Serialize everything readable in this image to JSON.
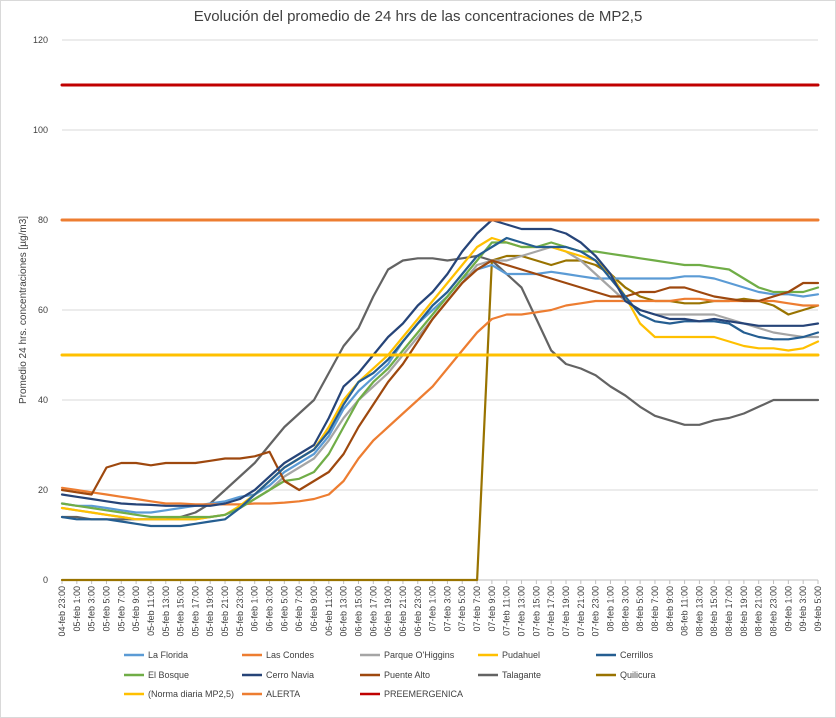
{
  "chart_data": {
    "type": "line",
    "title": "Evolución del promedio de 24 hrs de las concentraciones de MP2,5",
    "xlabel": "",
    "ylabel": "Promedio 24 hrs. concentraciones [µg/m3]",
    "ylim": [
      0,
      120
    ],
    "yticks": [
      0,
      20,
      40,
      60,
      80,
      100,
      120
    ],
    "grid": true,
    "legend_position": "bottom",
    "categories": [
      "04-feb 23:00",
      "05-feb 1:00",
      "05-feb 3:00",
      "05-feb 5:00",
      "05-feb 7:00",
      "05-feb 9:00",
      "05-feb 11:00",
      "05-feb 13:00",
      "05-feb 15:00",
      "05-feb 17:00",
      "05-feb 19:00",
      "05-feb 21:00",
      "05-feb 23:00",
      "06-feb 1:00",
      "06-feb 3:00",
      "06-feb 5:00",
      "06-feb 7:00",
      "06-feb 9:00",
      "06-feb 11:00",
      "06-feb 13:00",
      "06-feb 15:00",
      "06-feb 17:00",
      "06-feb 19:00",
      "06-feb 21:00",
      "06-feb 23:00",
      "07-feb 1:00",
      "07-feb 3:00",
      "07-feb 5:00",
      "07-feb 7:00",
      "07-feb 9:00",
      "07-feb 11:00",
      "07-feb 13:00",
      "07-feb 15:00",
      "07-feb 17:00",
      "07-feb 19:00",
      "07-feb 21:00",
      "07-feb 23:00",
      "08-feb 1:00",
      "08-feb 3:00",
      "08-feb 5:00",
      "08-feb 7:00",
      "08-feb 9:00",
      "08-feb 11:00",
      "08-feb 13:00",
      "08-feb 15:00",
      "08-feb 17:00",
      "08-feb 19:00",
      "08-feb 21:00",
      "08-feb 23:00",
      "09-feb 1:00",
      "09-feb 3:00",
      "09-feb 5:00"
    ],
    "series": [
      {
        "name": "La Florida",
        "color": "#5b9bd5",
        "values": [
          17,
          16.5,
          16.5,
          16,
          15.5,
          15,
          15,
          15.5,
          16,
          16.5,
          17,
          17.5,
          18.5,
          19,
          21,
          24,
          26,
          28,
          32,
          38,
          42,
          45,
          48,
          53,
          57,
          60,
          63,
          67,
          69,
          70,
          68,
          68,
          68,
          68.5,
          68,
          67.5,
          67,
          67,
          67,
          67,
          67,
          67,
          67.5,
          67.5,
          67,
          66,
          65,
          64,
          63.5,
          63.5,
          63,
          63.5
        ]
      },
      {
        "name": "Las Condes",
        "color": "#ed7d31",
        "values": [
          20.5,
          20,
          19.5,
          19,
          18.5,
          18,
          17.5,
          17,
          17,
          16.8,
          16.8,
          16.8,
          16.8,
          17,
          17,
          17.2,
          17.5,
          18,
          19,
          22,
          27,
          31,
          34,
          37,
          40,
          43,
          47,
          51,
          55,
          58,
          59,
          59,
          59.5,
          60,
          61,
          61.5,
          62,
          62,
          62,
          62,
          62,
          62,
          62.5,
          62.5,
          62,
          62,
          62,
          62,
          62,
          61.5,
          61,
          61
        ]
      },
      {
        "name": "Parque O'Higgins",
        "color": "#a5a5a5",
        "values": [
          16,
          15.5,
          15,
          14.5,
          14,
          13.5,
          13.5,
          13.5,
          13.5,
          13.5,
          14,
          14.5,
          16,
          18,
          20,
          23,
          25,
          27,
          31,
          36,
          40,
          43,
          46,
          50,
          54,
          58,
          62,
          66,
          70,
          71,
          71,
          72,
          73,
          74,
          73,
          71,
          68,
          65,
          62,
          60,
          59,
          59,
          59,
          59,
          59,
          58,
          57,
          56,
          55,
          54.5,
          54,
          54
        ]
      },
      {
        "name": "Pudahuel",
        "color": "#ffc000",
        "values": [
          16,
          15.5,
          15,
          14.5,
          14,
          13.5,
          13.5,
          13.5,
          13.5,
          13.5,
          14,
          14.5,
          16.5,
          19,
          22,
          25,
          27,
          29,
          34,
          40,
          44,
          47,
          50,
          54,
          58,
          62,
          66,
          70,
          74,
          76,
          75,
          74,
          74,
          74,
          73,
          72,
          71,
          68,
          63,
          57,
          54,
          54,
          54,
          54,
          54,
          53,
          52,
          51.5,
          51.5,
          51,
          51.5,
          53
        ]
      },
      {
        "name": "Cerrillos",
        "color": "#255e91",
        "values": [
          14,
          13.5,
          13.5,
          13.5,
          13,
          12.5,
          12,
          12,
          12,
          12.5,
          13,
          13.5,
          16,
          19,
          22,
          25,
          27,
          29,
          33,
          39,
          44,
          46,
          49,
          53,
          57,
          61,
          64,
          68,
          72,
          74,
          76,
          75,
          74,
          74,
          74,
          73,
          71,
          67,
          63,
          59,
          57.5,
          57,
          57.5,
          57.5,
          57.5,
          57,
          55,
          54,
          53.5,
          53.5,
          54,
          55
        ]
      },
      {
        "name": "El Bosque",
        "color": "#70ad47",
        "values": [
          17,
          16.5,
          16,
          15.5,
          15,
          14.5,
          14,
          14,
          14,
          14,
          14,
          14.5,
          16,
          18,
          20,
          22,
          22.5,
          24,
          28,
          34,
          40,
          44,
          47,
          51,
          55,
          59,
          63,
          67,
          71,
          75,
          75,
          74,
          74,
          75,
          74,
          73,
          73,
          72.5,
          72,
          71.5,
          71,
          70.5,
          70,
          70,
          69.5,
          69,
          67,
          65,
          64,
          64,
          64,
          65
        ]
      },
      {
        "name": "Cerro Navia",
        "color": "#264478",
        "values": [
          19,
          18.5,
          18,
          17.5,
          17,
          16.8,
          16.7,
          16.5,
          16.5,
          16.5,
          16.5,
          17,
          18,
          20,
          23,
          26,
          28,
          30,
          36,
          43,
          46,
          50,
          54,
          57,
          61,
          64,
          68,
          73,
          77,
          80,
          79,
          78,
          78,
          78,
          77,
          75,
          72,
          68,
          62,
          60,
          59,
          58,
          58,
          57.5,
          58,
          57.5,
          57,
          56.5,
          56.5,
          56.5,
          56.5,
          57
        ]
      },
      {
        "name": "Puente Alto",
        "color": "#9e480e",
        "values": [
          20,
          19.5,
          19,
          25,
          26,
          26,
          25.5,
          26,
          26,
          26,
          26.5,
          27,
          27,
          27.5,
          28.5,
          22,
          20,
          22,
          24,
          28,
          34,
          39,
          44,
          48,
          53,
          58,
          62,
          66,
          69,
          71,
          70,
          69,
          68,
          67,
          66,
          65,
          64,
          63,
          63,
          64,
          64,
          65,
          65,
          64,
          63,
          62.5,
          62,
          62,
          63,
          64,
          66,
          66
        ]
      },
      {
        "name": "Talagante",
        "color": "#636363",
        "values": [
          14,
          14,
          13.5,
          13.5,
          13.5,
          13.5,
          13.5,
          13.5,
          14,
          15,
          17,
          20,
          23,
          26,
          30,
          34,
          37,
          40,
          46,
          52,
          56,
          63,
          69,
          71,
          71.5,
          71.5,
          71,
          71.5,
          72,
          71,
          68,
          65,
          58,
          51,
          48,
          47,
          45.5,
          43,
          41,
          38.5,
          36.5,
          35.5,
          34.5,
          34.5,
          35.5,
          36,
          37,
          38.5,
          40,
          40,
          40,
          40
        ]
      },
      {
        "name": "Quilicura",
        "color": "#997300",
        "values": [
          0,
          0,
          0,
          0,
          0,
          0,
          0,
          0,
          0,
          0,
          0,
          0,
          0,
          0,
          0,
          0,
          0,
          0,
          0,
          0,
          0,
          0,
          0,
          0,
          0,
          0,
          0,
          0,
          0,
          71,
          72,
          72,
          71,
          70,
          71,
          71,
          70,
          68,
          65,
          63,
          62,
          62,
          61.5,
          61.5,
          62,
          62,
          62.5,
          62,
          61,
          59,
          60,
          61
        ]
      },
      {
        "name": "(Norma diaria MP2,5)",
        "color": "#ffc000",
        "values": "constant",
        "constant": 50
      },
      {
        "name": "ALERTA",
        "color": "#ed7d31",
        "values": "constant",
        "constant": 80
      },
      {
        "name": "PREEMERGENICA",
        "color": "#c00000",
        "values": "constant",
        "constant": 110
      }
    ]
  }
}
